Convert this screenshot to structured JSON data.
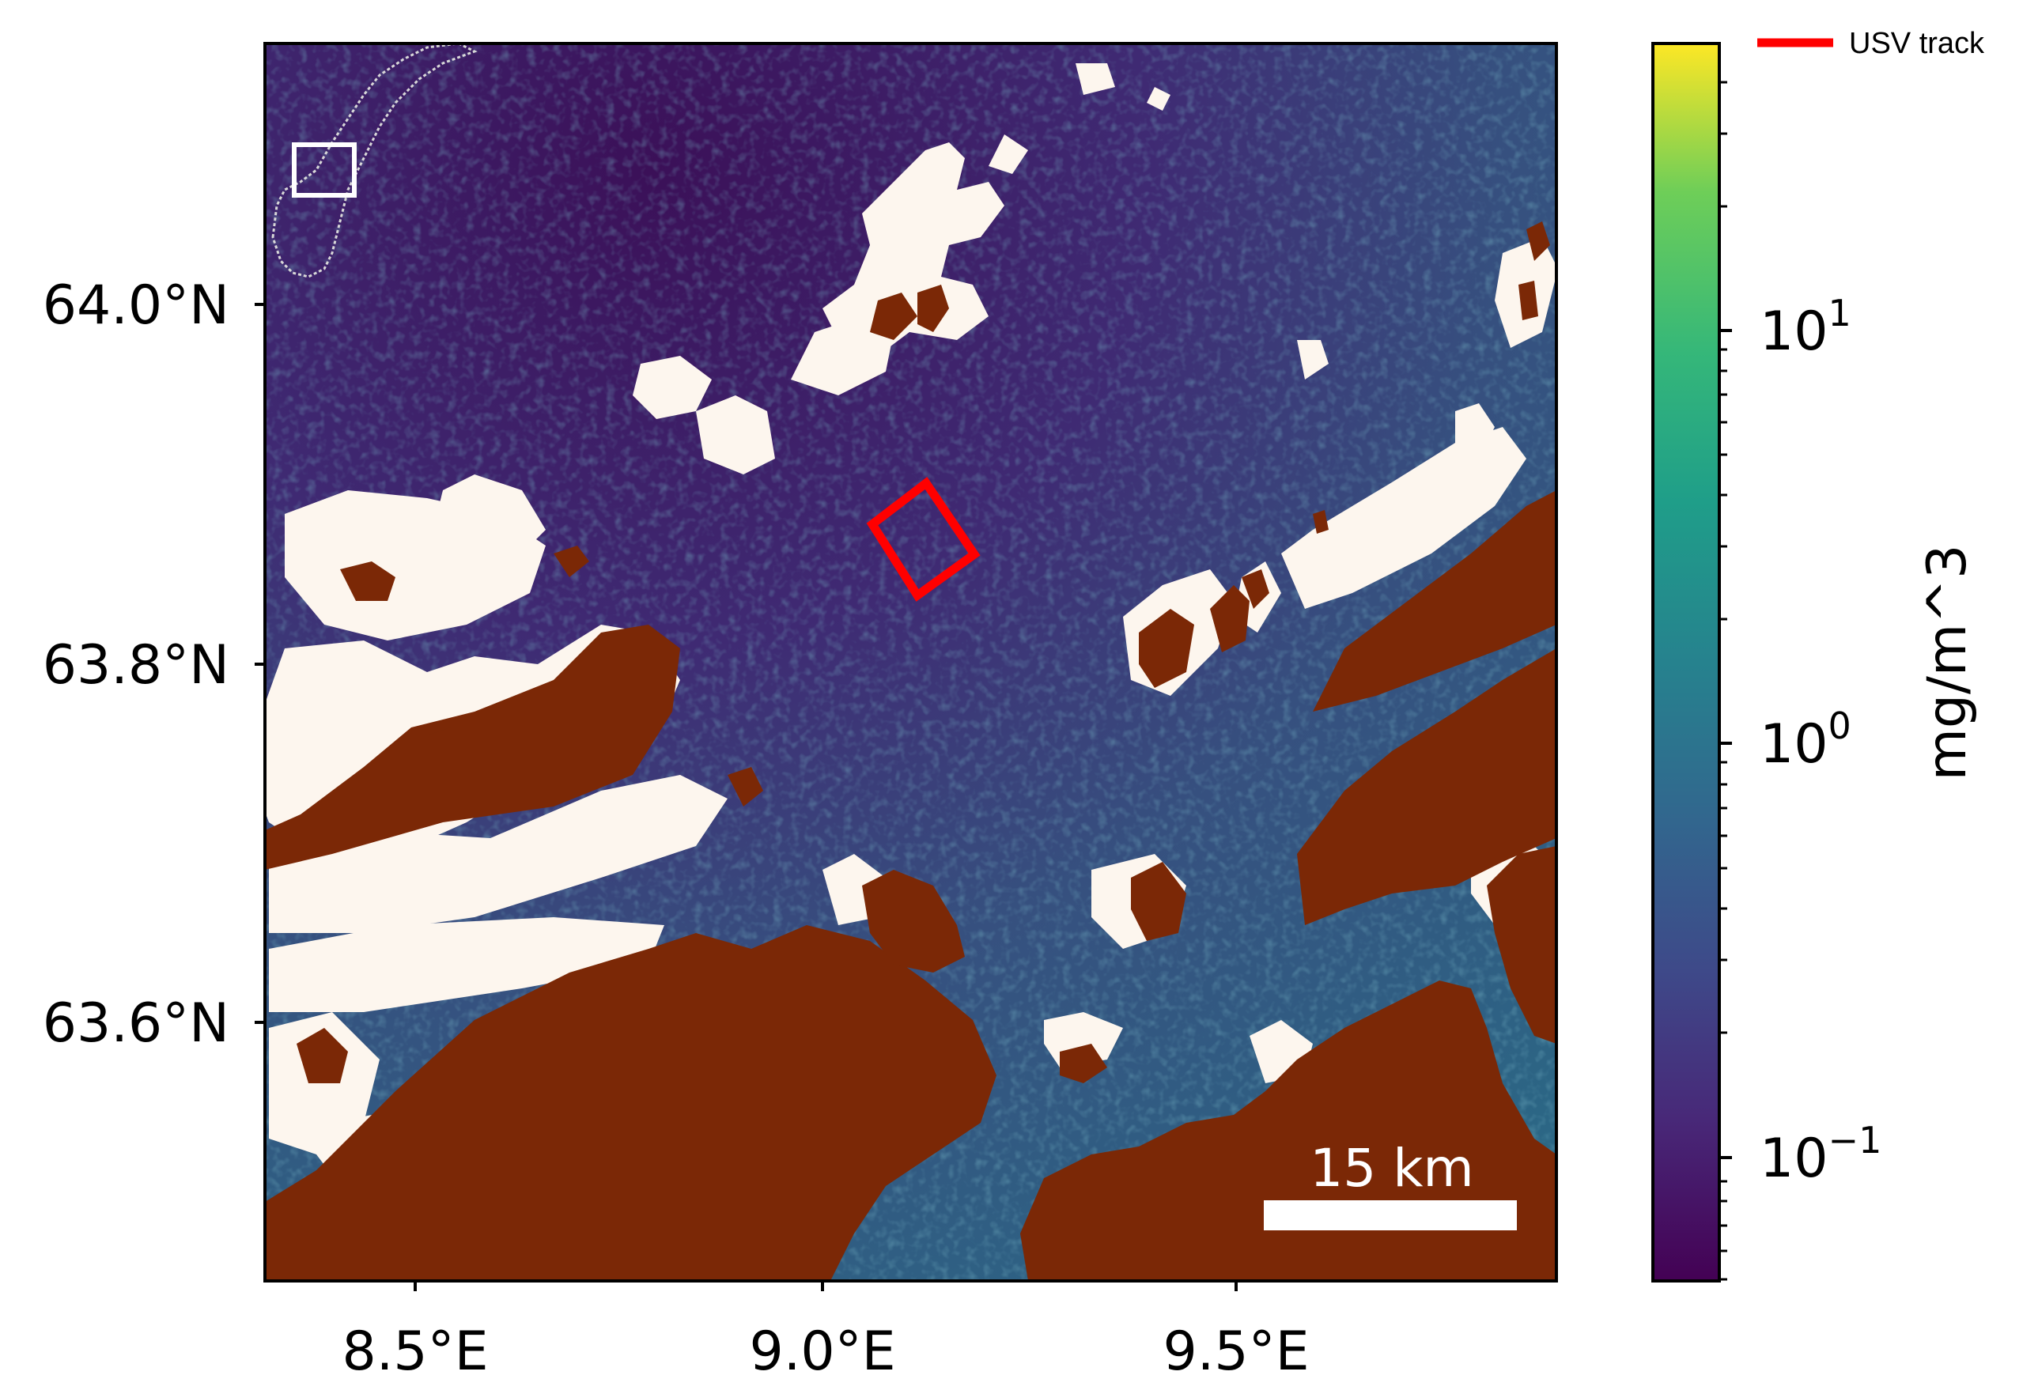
{
  "map": {
    "lat_ticks": [
      "64.0°N",
      "63.8°N",
      "63.6°N"
    ],
    "lon_ticks": [
      "8.5°E",
      "9.0°E",
      "9.5°E"
    ],
    "scale_bar_label": "15 km",
    "legend_label": "USV track",
    "colors": {
      "land": "#7b2806",
      "cloud_mask": "#fdf6ee",
      "track": "#ff0000",
      "scale_bar": "#ffffff",
      "locator_box": "#ffffff"
    }
  },
  "colorbar": {
    "label": "mg/m^3",
    "scale": "log",
    "colormap": "viridis",
    "ticks": [
      {
        "base": "10",
        "exp": "1"
      },
      {
        "base": "10",
        "exp": "0"
      },
      {
        "base": "10",
        "exp": "−1"
      }
    ]
  }
}
